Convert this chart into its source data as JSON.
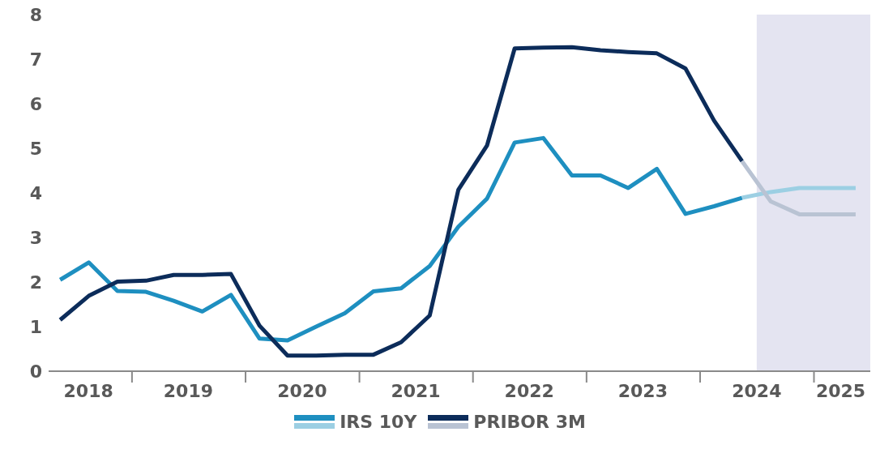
{
  "chart_data": {
    "type": "line",
    "x": [
      "2018-05-15",
      "2018-08-15",
      "2018-11-15",
      "2019-02-15",
      "2019-05-15",
      "2019-08-15",
      "2019-11-15",
      "2020-02-15",
      "2020-05-15",
      "2020-08-15",
      "2020-11-15",
      "2021-02-15",
      "2021-05-15",
      "2021-08-15",
      "2021-11-15",
      "2022-02-15",
      "2022-05-15",
      "2022-08-15",
      "2022-11-15",
      "2023-02-15",
      "2023-05-15",
      "2023-08-15",
      "2023-11-15",
      "2024-02-15",
      "2024-05-15",
      "2024-08-15",
      "2024-11-15",
      "2025-02-15",
      "2025-05-15"
    ],
    "series": [
      {
        "name": "IRS 10Y",
        "color": "#1e8fc0",
        "values": [
          2.05,
          2.44,
          1.8,
          1.78,
          1.58,
          1.34,
          1.71,
          0.73,
          0.69,
          1.0,
          1.3,
          1.79,
          1.86,
          2.36,
          3.24,
          3.87,
          5.13,
          5.23,
          4.39,
          4.39,
          4.11,
          4.54,
          3.53,
          3.7,
          3.89,
          null,
          null,
          null,
          null
        ]
      },
      {
        "color": "#9ccfe3",
        "values": [
          null,
          null,
          null,
          null,
          null,
          null,
          null,
          null,
          null,
          null,
          null,
          null,
          null,
          null,
          null,
          null,
          null,
          null,
          null,
          null,
          null,
          null,
          null,
          null,
          3.89,
          4.02,
          4.11,
          4.11,
          4.11
        ]
      },
      {
        "name": "PRIBOR 3M",
        "color": "#0c2c5a",
        "values": [
          1.15,
          1.69,
          2.01,
          2.03,
          2.16,
          2.16,
          2.18,
          1.02,
          0.35,
          0.35,
          0.37,
          0.37,
          0.65,
          1.25,
          4.07,
          5.06,
          7.24,
          7.26,
          7.27,
          7.2,
          7.16,
          7.13,
          6.79,
          5.62,
          4.71,
          null,
          null,
          null,
          null
        ]
      },
      {
        "color": "#b9c3d3",
        "values": [
          null,
          null,
          null,
          null,
          null,
          null,
          null,
          null,
          null,
          null,
          null,
          null,
          null,
          null,
          null,
          null,
          null,
          null,
          null,
          null,
          null,
          null,
          null,
          null,
          4.71,
          3.81,
          3.52,
          3.52,
          3.52
        ]
      }
    ],
    "xlim": [
      "2018-04-08",
      "2025-07-01"
    ],
    "xticks": [
      {
        "value": "2018-08-14",
        "label": "2018"
      },
      {
        "value": "2019-01-01",
        "label": null
      },
      {
        "value": "2019-07-01",
        "label": "2019"
      },
      {
        "value": "2020-01-01",
        "label": null
      },
      {
        "value": "2020-07-01",
        "label": "2020"
      },
      {
        "value": "2021-01-01",
        "label": null
      },
      {
        "value": "2021-07-01",
        "label": "2021"
      },
      {
        "value": "2022-01-01",
        "label": null
      },
      {
        "value": "2022-07-01",
        "label": "2022"
      },
      {
        "value": "2023-01-01",
        "label": null
      },
      {
        "value": "2023-07-01",
        "label": "2023"
      },
      {
        "value": "2024-01-01",
        "label": null
      },
      {
        "value": "2024-07-01",
        "label": "2024"
      },
      {
        "value": "2025-01-01",
        "label": null
      },
      {
        "value": "2025-03-28",
        "label": "2025"
      }
    ],
    "ylim": [
      0,
      8
    ],
    "yticks": [
      0,
      1,
      2,
      3,
      4,
      5,
      6,
      7,
      8
    ],
    "bands": [
      {
        "axis": "x",
        "from": "2024-07-01",
        "to": "2025-07-01",
        "color": "#e4e4f1"
      }
    ],
    "grid": false,
    "legend": "bottom",
    "marker": "none",
    "line_style": "solid"
  }
}
